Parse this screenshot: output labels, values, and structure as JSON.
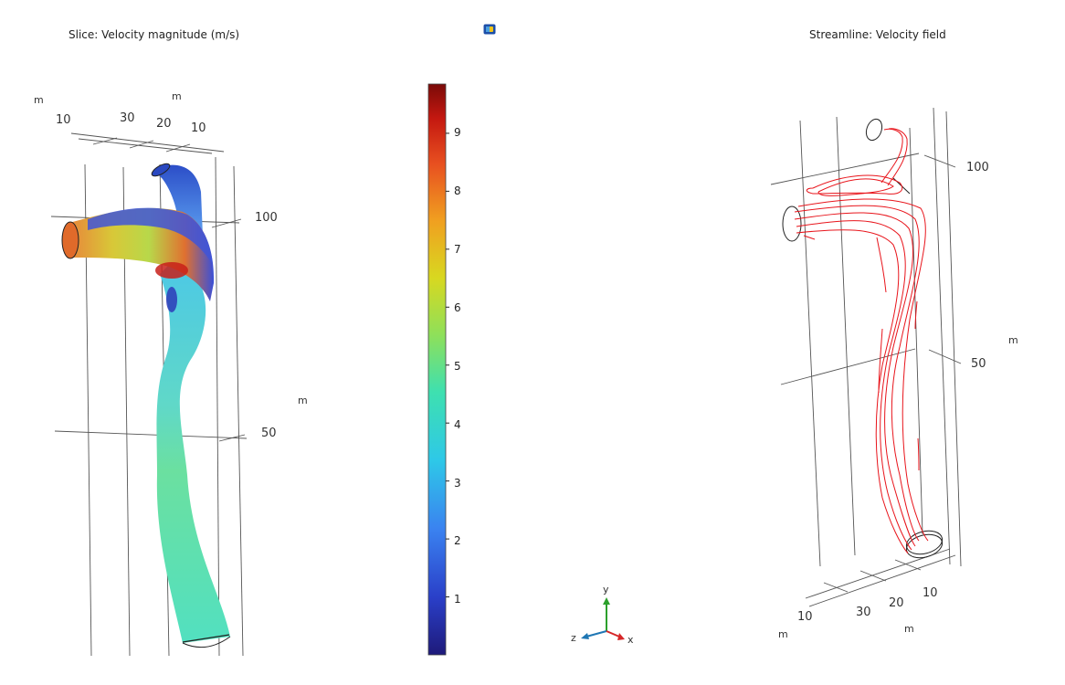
{
  "left_plot": {
    "title": "Slice: Velocity magnitude (m/s)",
    "axis_unit_x": "m",
    "axis_unit_z": "m",
    "axis_unit_y": "m",
    "x_ticks": [
      "10",
      "30"
    ],
    "z_ticks": [
      "20",
      "10"
    ],
    "y_ticks": [
      "100",
      "50"
    ]
  },
  "right_plot": {
    "title": "Streamline: Velocity field",
    "axis_unit_y": "m",
    "axis_unit_x": "m",
    "axis_unit_z": "m",
    "y_ticks": [
      "100",
      "50"
    ],
    "x_ticks": [
      "10",
      "30"
    ],
    "z_ticks": [
      "20",
      "10"
    ]
  },
  "colorbar": {
    "ticks": [
      "9",
      "8",
      "7",
      "6",
      "5",
      "4",
      "3",
      "2",
      "1"
    ],
    "min": 0,
    "max": 9.85,
    "colormap": "rainbow"
  },
  "triad": {
    "y": "y",
    "z": "z",
    "x": "x",
    "colors": {
      "y": "#2ca02c",
      "z": "#1f77b4",
      "x": "#d62728"
    }
  },
  "colors": {
    "streamline": "#e8141b",
    "grid": "#555555"
  },
  "icons": {
    "app": "comsol-app-icon"
  }
}
